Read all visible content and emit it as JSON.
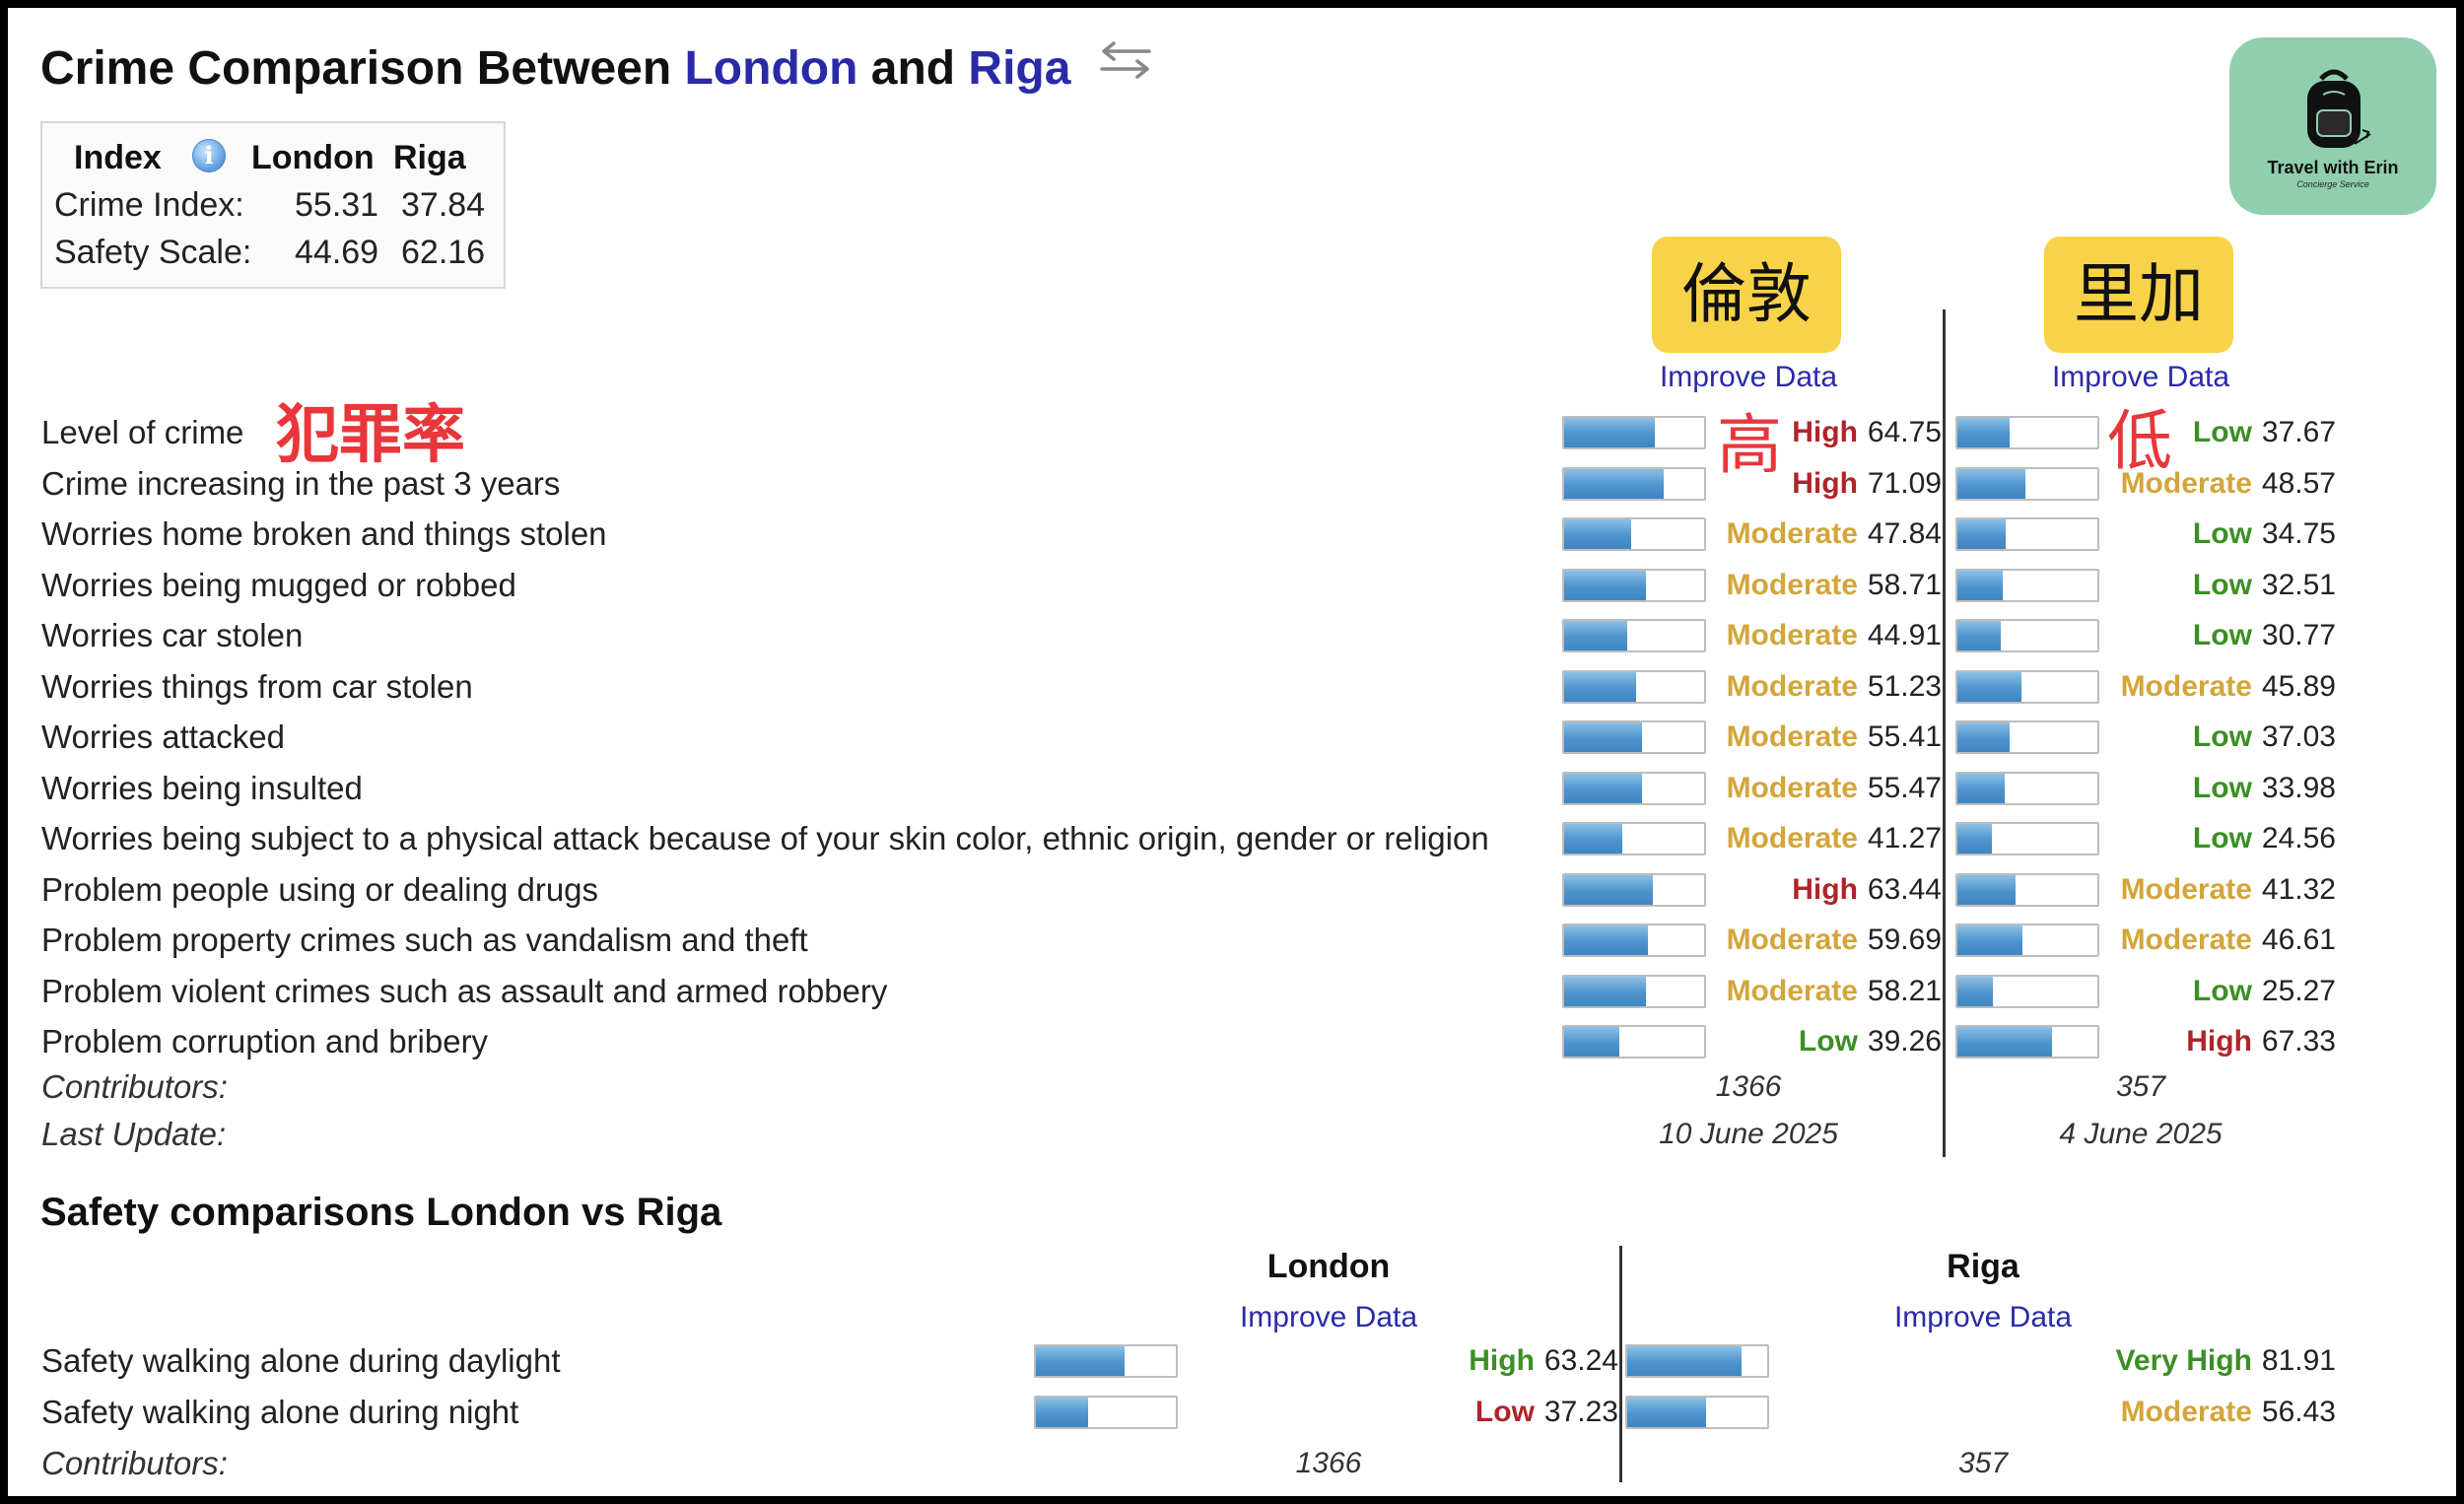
{
  "title": {
    "prefix": "Crime Comparison Between ",
    "city1": "London",
    "mid": " and ",
    "city2": "Riga"
  },
  "index_table": {
    "headers": [
      "Index",
      "London",
      "Riga"
    ],
    "rows": [
      {
        "label": "Crime Index:",
        "london": "55.31",
        "riga": "37.84"
      },
      {
        "label": "Safety Scale:",
        "london": "44.69",
        "riga": "62.16"
      }
    ]
  },
  "logo": {
    "brand": "Travel with Erin",
    "sub": "Concierge Service"
  },
  "badges": {
    "london": "倫敦",
    "riga": "里加"
  },
  "improve_data": "Improve Data",
  "annotations": {
    "level_of_crime": "犯罪率",
    "london_level": "高",
    "riga_level": "低"
  },
  "crime_rows": [
    {
      "label": "Level of crime",
      "london": {
        "level": "High",
        "value": "64.75",
        "pct": 64.75
      },
      "riga": {
        "level": "Low",
        "value": "37.67",
        "pct": 37.67
      }
    },
    {
      "label": "Crime increasing in the past 3 years",
      "london": {
        "level": "High",
        "value": "71.09",
        "pct": 71.09
      },
      "riga": {
        "level": "Moderate",
        "value": "48.57",
        "pct": 48.57
      }
    },
    {
      "label": "Worries home broken and things stolen",
      "london": {
        "level": "Moderate",
        "value": "47.84",
        "pct": 47.84
      },
      "riga": {
        "level": "Low",
        "value": "34.75",
        "pct": 34.75
      }
    },
    {
      "label": "Worries being mugged or robbed",
      "london": {
        "level": "Moderate",
        "value": "58.71",
        "pct": 58.71
      },
      "riga": {
        "level": "Low",
        "value": "32.51",
        "pct": 32.51
      }
    },
    {
      "label": "Worries car stolen",
      "london": {
        "level": "Moderate",
        "value": "44.91",
        "pct": 44.91
      },
      "riga": {
        "level": "Low",
        "value": "30.77",
        "pct": 30.77
      }
    },
    {
      "label": "Worries things from car stolen",
      "london": {
        "level": "Moderate",
        "value": "51.23",
        "pct": 51.23
      },
      "riga": {
        "level": "Moderate",
        "value": "45.89",
        "pct": 45.89
      }
    },
    {
      "label": "Worries attacked",
      "london": {
        "level": "Moderate",
        "value": "55.41",
        "pct": 55.41
      },
      "riga": {
        "level": "Low",
        "value": "37.03",
        "pct": 37.03
      }
    },
    {
      "label": "Worries being insulted",
      "london": {
        "level": "Moderate",
        "value": "55.47",
        "pct": 55.47
      },
      "riga": {
        "level": "Low",
        "value": "33.98",
        "pct": 33.98
      }
    },
    {
      "label": "Worries being subject to a physical attack because of your skin color, ethnic origin, gender or religion",
      "london": {
        "level": "Moderate",
        "value": "41.27",
        "pct": 41.27
      },
      "riga": {
        "level": "Low",
        "value": "24.56",
        "pct": 24.56
      }
    },
    {
      "label": "Problem people using or dealing drugs",
      "london": {
        "level": "High",
        "value": "63.44",
        "pct": 63.44
      },
      "riga": {
        "level": "Moderate",
        "value": "41.32",
        "pct": 41.32
      }
    },
    {
      "label": "Problem property crimes such as vandalism and theft",
      "london": {
        "level": "Moderate",
        "value": "59.69",
        "pct": 59.69
      },
      "riga": {
        "level": "Moderate",
        "value": "46.61",
        "pct": 46.61
      }
    },
    {
      "label": "Problem violent crimes such as assault and armed robbery",
      "london": {
        "level": "Moderate",
        "value": "58.21",
        "pct": 58.21
      },
      "riga": {
        "level": "Low",
        "value": "25.27",
        "pct": 25.27
      }
    },
    {
      "label": "Problem corruption and bribery",
      "london": {
        "level": "Low",
        "value": "39.26",
        "pct": 39.26
      },
      "riga": {
        "level": "High",
        "value": "67.33",
        "pct": 67.33
      }
    }
  ],
  "contributors_label": "Contributors:",
  "last_update_label": "Last Update:",
  "crime_contributors": {
    "london": "1366",
    "riga": "357"
  },
  "last_update": {
    "london": "10 June 2025",
    "riga": "4 June 2025"
  },
  "safety": {
    "title": "Safety comparisons London vs Riga",
    "col_london": "London",
    "col_riga": "Riga",
    "rows": [
      {
        "label": "Safety walking alone during daylight",
        "london": {
          "level": "High",
          "value": "63.24",
          "pct": 63.24
        },
        "riga": {
          "level": "Very High",
          "value": "81.91",
          "pct": 81.91
        }
      },
      {
        "label": "Safety walking alone during night",
        "london": {
          "level": "Low",
          "value": "37.23",
          "pct": 37.23
        },
        "riga": {
          "level": "Moderate",
          "value": "56.43",
          "pct": 56.43
        }
      }
    ],
    "contributors": {
      "london": "1366",
      "riga": "357"
    }
  },
  "level_colors": {
    "High": "#b0232a",
    "Moderate": "#d3a53a",
    "Low": "#3b8f25",
    "Very High": "#3b8f25",
    "safety_Low": "#b0232a",
    "safety_High": "#3b8f25"
  }
}
